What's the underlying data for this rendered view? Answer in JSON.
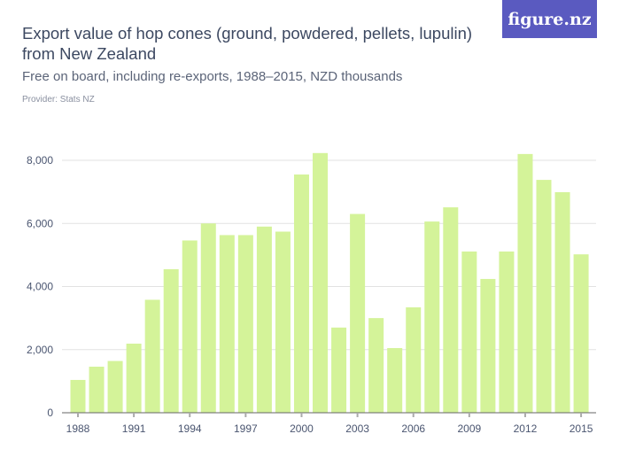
{
  "header": {
    "title": "Export value of hop cones (ground, powdered, pellets, lupulin) from New Zealand",
    "subtitle": "Free on board, including re-exports, 1988–2015, NZD thousands",
    "provider": "Provider: Stats NZ",
    "logo": "figure.nz"
  },
  "colors": {
    "bar": "#d4f399",
    "logo_bg": "#5a5ac0",
    "title": "#3c4861"
  },
  "chart_data": {
    "type": "bar",
    "title": "Export value of hop cones (ground, powdered, pellets, lupulin) from New Zealand",
    "subtitle": "Free on board, including re-exports, 1988–2015, NZD thousands",
    "categories": [
      "1988",
      "1989",
      "1990",
      "1991",
      "1992",
      "1993",
      "1994",
      "1995",
      "1996",
      "1997",
      "1998",
      "1999",
      "2000",
      "2001",
      "2002",
      "2003",
      "2004",
      "2005",
      "2006",
      "2007",
      "2008",
      "2009",
      "2010",
      "2011",
      "2012",
      "2013",
      "2014",
      "2015"
    ],
    "values": [
      1040,
      1460,
      1640,
      2190,
      3580,
      4550,
      5460,
      6000,
      5630,
      5630,
      5900,
      5740,
      7550,
      8230,
      2700,
      6300,
      3000,
      2050,
      3340,
      6060,
      6510,
      5110,
      4240,
      5110,
      8200,
      7380,
      6990,
      5020
    ],
    "x_tick_labels": [
      "1988",
      "1991",
      "1994",
      "1997",
      "2000",
      "2003",
      "2006",
      "2009",
      "2012",
      "2015"
    ],
    "y_tick_labels": [
      "0",
      "2,000",
      "4,000",
      "6,000",
      "8,000"
    ],
    "y_ticks": [
      0,
      2000,
      4000,
      6000,
      8000
    ],
    "ylim": [
      0,
      8000
    ],
    "grid": true,
    "legend": "none"
  }
}
